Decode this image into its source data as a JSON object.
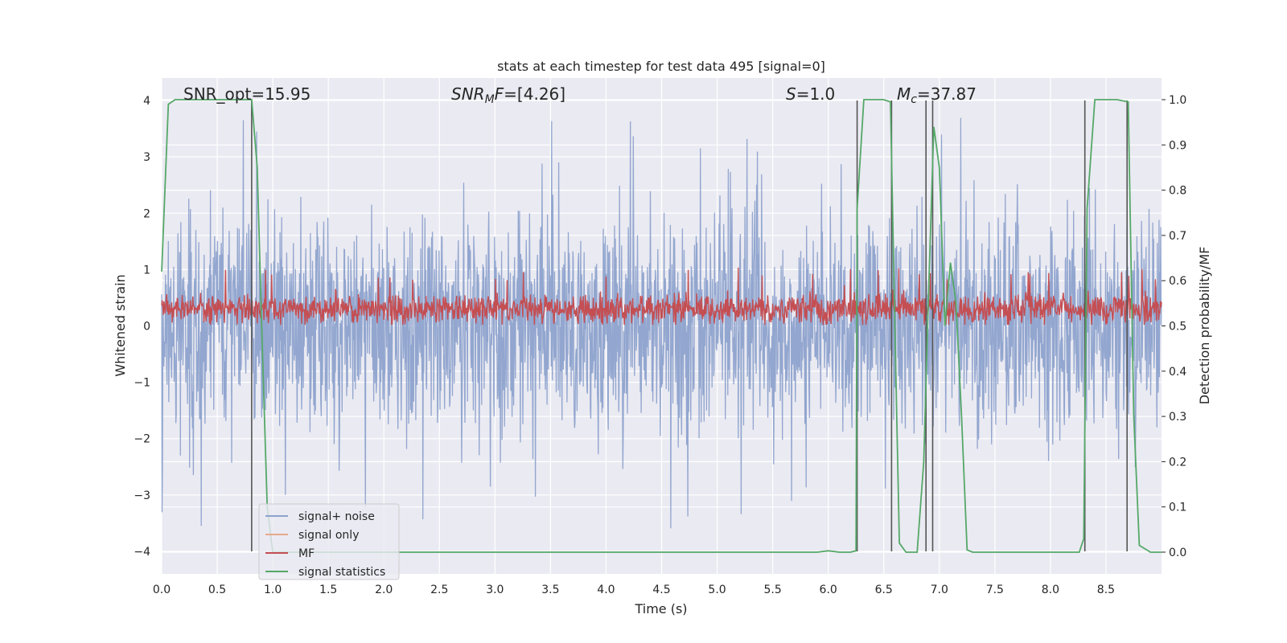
{
  "chart_data": {
    "type": "line",
    "title": "stats at each timestep for test data 495 [signal=0]",
    "xlabel": "Time (s)",
    "ylabel": "Whitened strain",
    "y2label": "Detection probability/MF",
    "xlim": [
      0.0,
      9.0
    ],
    "ylim": [
      -4.4,
      4.4
    ],
    "y2lim": [
      -0.048,
      1.048
    ],
    "grid": true,
    "legend_position": "lower-left",
    "x_ticks": [
      "0.0",
      "0.5",
      "1.0",
      "1.5",
      "2.0",
      "2.5",
      "3.0",
      "3.5",
      "4.0",
      "4.5",
      "5.0",
      "5.5",
      "6.0",
      "6.5",
      "7.0",
      "7.5",
      "8.0",
      "8.5"
    ],
    "x_tick_values": [
      0,
      0.5,
      1,
      1.5,
      2,
      2.5,
      3,
      3.5,
      4,
      4.5,
      5,
      5.5,
      6,
      6.5,
      7,
      7.5,
      8,
      8.5
    ],
    "y_ticks": [
      "4",
      "3",
      "2",
      "1",
      "0",
      "−1",
      "−2",
      "−3",
      "−4"
    ],
    "y_tick_values": [
      4,
      3,
      2,
      1,
      0,
      -1,
      -2,
      -3,
      -4
    ],
    "y2_ticks": [
      "1.0",
      "0.9",
      "0.8",
      "0.7",
      "0.6",
      "0.5",
      "0.4",
      "0.3",
      "0.2",
      "0.1",
      "0.0"
    ],
    "y2_tick_values": [
      1.0,
      0.9,
      0.8,
      0.7,
      0.6,
      0.5,
      0.4,
      0.3,
      0.2,
      0.1,
      0.0
    ],
    "annotations": [
      {
        "text": "SNR_opt=15.95",
        "x": 0.2,
        "y": 4.1
      },
      {
        "text": "SNR_MF=[4.26]",
        "x": 2.6,
        "y": 4.1
      },
      {
        "text": "S=1.0",
        "x": 5.6,
        "y": 4.1
      },
      {
        "text": "M_c=37.87",
        "x": 6.6,
        "y": 4.1
      }
    ],
    "series": [
      {
        "name": "signal+ noise",
        "color": "#8da2cc",
        "axis": "y",
        "description_kind": "noise",
        "amplitude_range": [
          -3.7,
          4.0
        ],
        "core_range": [
          -1.6,
          1.6
        ]
      },
      {
        "name": "signal only",
        "color": "#e8a98b",
        "axis": "y",
        "values": []
      },
      {
        "name": "MF",
        "color": "#c44e52",
        "axis": "y",
        "description_kind": "noise",
        "amplitude_range": [
          0.0,
          1.0
        ],
        "core_range": [
          0.05,
          0.65
        ]
      },
      {
        "name": "signal statistics",
        "color": "#55a868",
        "axis": "y2",
        "x": [
          0.0,
          0.06,
          0.12,
          0.2,
          0.3,
          0.5,
          0.7,
          0.81,
          0.86,
          0.9,
          0.95,
          1.0,
          1.1,
          2.0,
          3.0,
          4.0,
          5.0,
          5.9,
          6.0,
          6.1,
          6.2,
          6.25,
          6.26,
          6.32,
          6.4,
          6.5,
          6.56,
          6.6,
          6.64,
          6.7,
          6.8,
          6.86,
          6.9,
          6.95,
          7.0,
          7.05,
          7.1,
          7.15,
          7.2,
          7.25,
          7.3,
          7.4,
          8.0,
          8.26,
          8.3,
          8.33,
          8.4,
          8.6,
          8.7,
          8.75,
          8.8,
          8.9,
          9.0
        ],
        "y": [
          0.62,
          0.99,
          1.0,
          1.0,
          1.0,
          1.0,
          1.0,
          1.0,
          0.85,
          0.5,
          0.1,
          0.0,
          0.0,
          0.0,
          0.0,
          0.0,
          0.0,
          0.0,
          0.003,
          0.0,
          0.0,
          0.003,
          0.76,
          1.0,
          1.0,
          1.0,
          0.995,
          0.5,
          0.02,
          0.0,
          0.0,
          0.2,
          0.55,
          0.94,
          0.85,
          0.5,
          0.64,
          0.55,
          0.3,
          0.005,
          0.0,
          0.0,
          0.0,
          0.0,
          0.03,
          0.76,
          1.0,
          1.0,
          0.995,
          0.3,
          0.015,
          0.0,
          0.0
        ]
      }
    ],
    "vertical_lines_x": [
      0.81,
      6.26,
      6.57,
      6.88,
      6.94,
      8.31,
      8.69
    ],
    "vertical_lines_range": [
      -4,
      4
    ]
  }
}
